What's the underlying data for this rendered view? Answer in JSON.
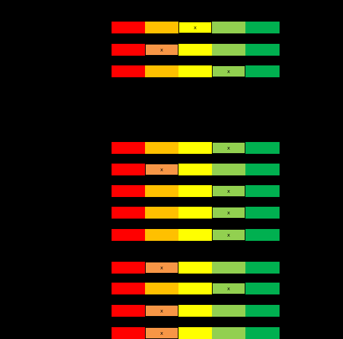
{
  "scale": {
    "levels": 5,
    "colors": [
      "#FF0000",
      "#FFC000",
      "#FFFF00",
      "#92D050",
      "#00B050"
    ],
    "marker": "x"
  },
  "groups": [
    {
      "rows": [
        {
          "selected": 3
        },
        {
          "selected": 2
        },
        {
          "selected": 4
        }
      ]
    },
    {
      "rows": [
        {
          "selected": 4
        },
        {
          "selected": 2
        },
        {
          "selected": 4
        },
        {
          "selected": 4
        },
        {
          "selected": 4
        }
      ]
    },
    {
      "rows": [
        {
          "selected": 2
        },
        {
          "selected": 4
        },
        {
          "selected": 2
        },
        {
          "selected": 2
        }
      ]
    }
  ]
}
